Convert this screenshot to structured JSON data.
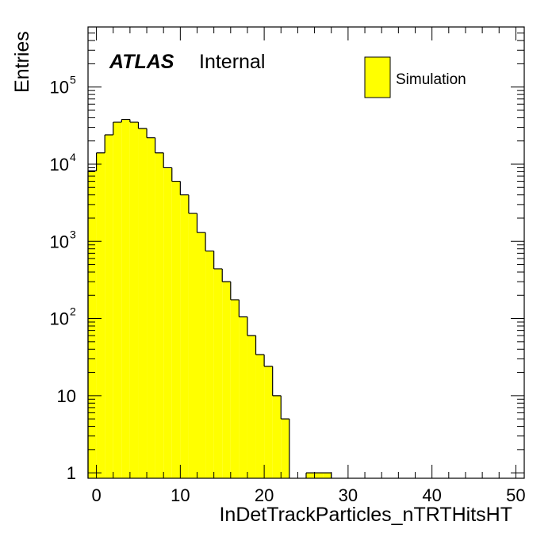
{
  "chart_data": {
    "type": "bar",
    "title": "",
    "xlabel": "InDetTrackParticles_nTRTHitsHT",
    "ylabel": "Entries",
    "xlim": [
      -1,
      51
    ],
    "ylim": [
      0.85,
      600000
    ],
    "log_y": true,
    "bin_width": 1,
    "x": [
      -1,
      0,
      1,
      2,
      3,
      4,
      5,
      6,
      7,
      8,
      9,
      10,
      11,
      12,
      13,
      14,
      15,
      16,
      17,
      18,
      19,
      20,
      21,
      22,
      23,
      24,
      25,
      26,
      27
    ],
    "values": [
      8200,
      14000,
      24000,
      35000,
      38000,
      35000,
      29000,
      22000,
      14000,
      9000,
      6000,
      4000,
      2300,
      1300,
      750,
      440,
      300,
      175,
      105,
      60,
      34,
      24,
      10,
      5,
      0,
      0,
      1,
      1,
      1
    ],
    "series": [
      {
        "name": "Simulation",
        "color": "#ffff00",
        "edge_color": "#000000"
      }
    ],
    "x_ticks": [
      "0",
      "10",
      "20",
      "30",
      "40",
      "50"
    ],
    "y_ticks": [
      {
        "base": "1",
        "exp": ""
      },
      {
        "base": "10",
        "exp": ""
      },
      {
        "base": "10",
        "exp": "2"
      },
      {
        "base": "10",
        "exp": "3"
      },
      {
        "base": "10",
        "exp": "4"
      },
      {
        "base": "10",
        "exp": "5"
      }
    ],
    "legend": {
      "placement": "top-right",
      "entries": [
        "Simulation"
      ]
    },
    "annotation": {
      "bold": "ATLAS",
      "normal": "Internal"
    },
    "grid": false
  }
}
